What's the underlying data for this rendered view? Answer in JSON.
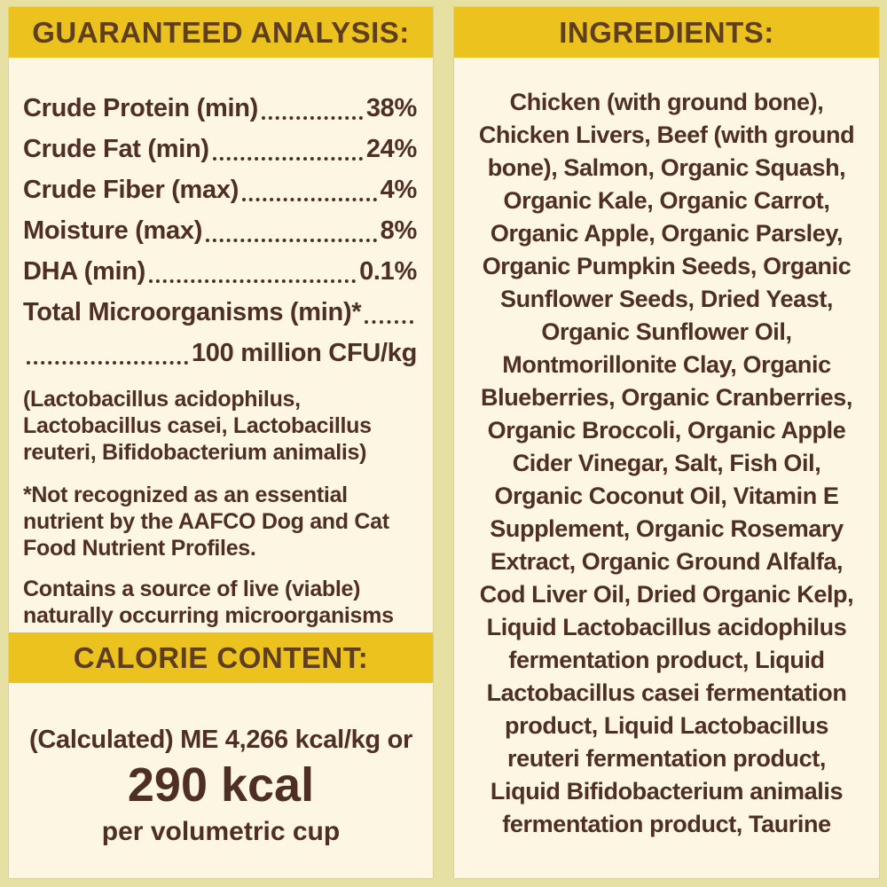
{
  "colors": {
    "page_background": "#e7e0a3",
    "panel_background": "#fcf6e3",
    "header_bar": "#ecc31e",
    "header_text": "#5e3e1d",
    "body_text": "#4f2f25"
  },
  "guaranteed_analysis": {
    "header": "GUARANTEED ANALYSIS:",
    "rows": [
      {
        "label": "Crude Protein (min)",
        "value": "38%"
      },
      {
        "label": "Crude Fat (min)",
        "value": "24%"
      },
      {
        "label": "Crude Fiber (max)",
        "value": "4%"
      },
      {
        "label": "Moisture (max)",
        "value": "8%"
      },
      {
        "label": "DHA (min)",
        "value": "0.1%"
      },
      {
        "label": "Total Microorganisms (min)*",
        "value": ""
      },
      {
        "label": "",
        "value": "100 million CFU/kg"
      }
    ],
    "microorganism_species_lines": [
      "(Lactobacillus acidophilus,",
      "Lactobacillus casei, Lactobacillus",
      "reuteri, Bifidobacterium animalis)"
    ],
    "footnote_lines": [
      "*Not recognized as an essential",
      "nutrient by the AAFCO Dog and Cat",
      "Food Nutrient Profiles."
    ],
    "contains_lines": [
      "Contains a source of live (viable)",
      "naturally occurring microorganisms"
    ]
  },
  "calorie_content": {
    "header": "CALORIE CONTENT:",
    "calculated_line": "(Calculated) ME 4,266 kcal/kg or",
    "kcal_value": "290 kcal",
    "per_unit": "per volumetric cup"
  },
  "ingredients": {
    "header": "INGREDIENTS:",
    "lines": [
      "Chicken (with ground bone),",
      "Chicken Livers, Beef (with ground",
      "bone), Salmon, Organic Squash,",
      "Organic Kale, Organic Carrot,",
      "Organic Apple, Organic Parsley,",
      "Organic Pumpkin Seeds, Organic",
      "Sunflower Seeds, Dried Yeast,",
      "Organic Sunflower Oil,",
      "Montmorillonite Clay, Organic",
      "Blueberries, Organic Cranberries,",
      "Organic Broccoli, Organic Apple",
      "Cider Vinegar, Salt, Fish Oil,",
      "Organic Coconut Oil, Vitamin E",
      "Supplement, Organic Rosemary",
      "Extract, Organic Ground Alfalfa,",
      "Cod Liver Oil, Dried Organic Kelp,",
      "Liquid Lactobacillus acidophilus",
      "fermentation product, Liquid",
      "Lactobacillus casei fermentation",
      "product, Liquid Lactobacillus",
      "reuteri fermentation product,",
      "Liquid Bifidobacterium animalis",
      "fermentation product, Taurine"
    ]
  }
}
